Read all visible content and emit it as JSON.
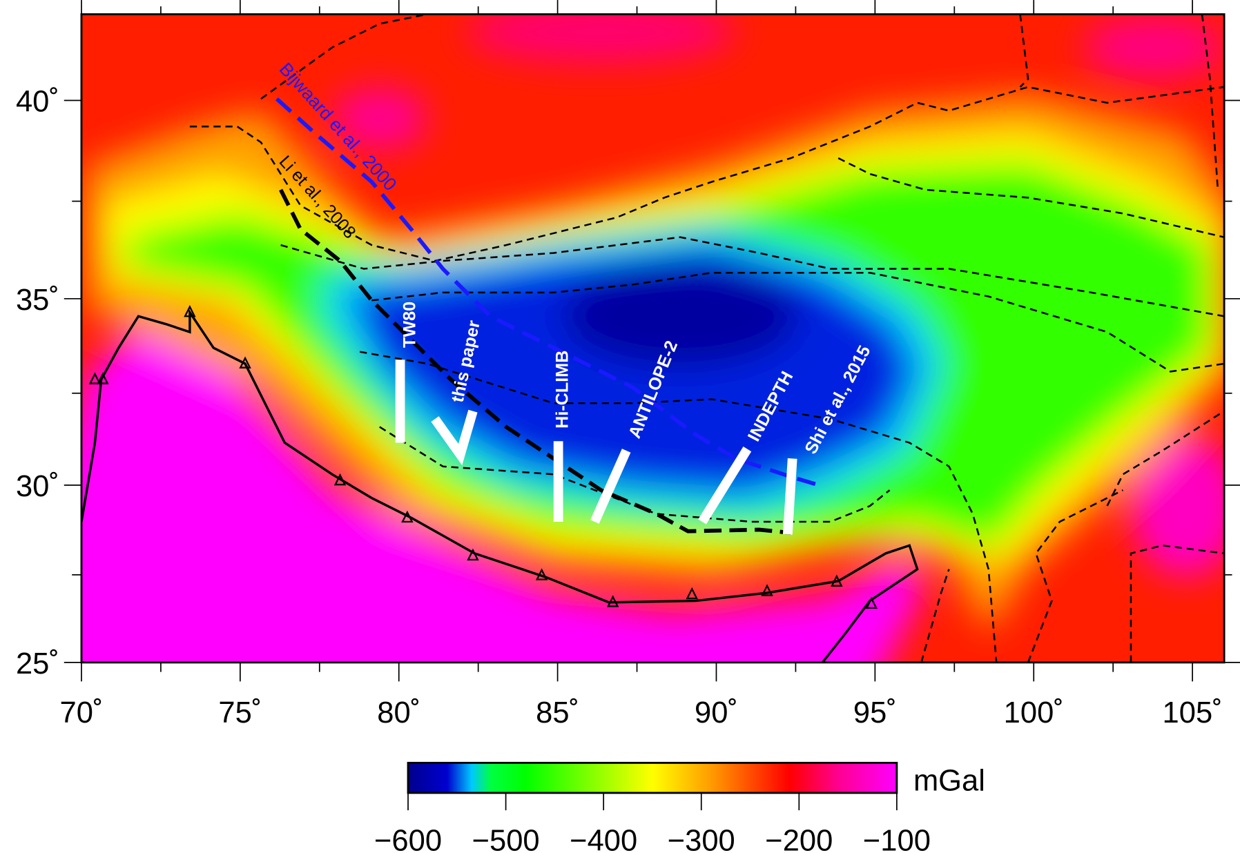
{
  "map": {
    "lon_range": [
      70,
      106
    ],
    "lat_range": [
      25,
      42.1
    ],
    "projection": "mercator",
    "lon_ticks": [
      70,
      75,
      80,
      85,
      90,
      95,
      100,
      105
    ],
    "lon_tick_labels": [
      "70˚",
      "75˚",
      "80˚",
      "85˚",
      "90˚",
      "95˚",
      "100˚",
      "105˚"
    ],
    "lat_ticks": [
      25,
      30,
      35,
      40
    ],
    "lat_tick_labels": [
      "25˚",
      "30˚",
      "35˚",
      "40˚"
    ],
    "annotations": {
      "bijwaard": "Bijwaard et al., 2000",
      "li": "Li et al., 2008"
    },
    "profiles": [
      {
        "label": "TW80"
      },
      {
        "label": "this  paper"
      },
      {
        "label": "Hi-CLIMB"
      },
      {
        "label": "ANTILOPE-2"
      },
      {
        "label": "INDEPTH"
      },
      {
        "label": "Shi et al., 2015"
      }
    ],
    "colors": {
      "bijwaard_line": "#1a1aff",
      "li_line": "#000000",
      "profiles": "#ffffff",
      "front": "#000000"
    }
  },
  "colorbar": {
    "unit": "mGal",
    "range": [
      -600,
      -100
    ],
    "ticks": [
      -600,
      -500,
      -400,
      -300,
      -200,
      -100
    ],
    "tick_labels": [
      "−600",
      "−500",
      "−400",
      "−300",
      "−200",
      "−100"
    ],
    "stops": [
      {
        "value": -600,
        "color": "#00008c"
      },
      {
        "value": -560,
        "color": "#0000d0"
      },
      {
        "value": -535,
        "color": "#00c8ff"
      },
      {
        "value": -515,
        "color": "#00ff40"
      },
      {
        "value": -480,
        "color": "#00ff00"
      },
      {
        "value": -400,
        "color": "#9cff00"
      },
      {
        "value": -350,
        "color": "#ffff00"
      },
      {
        "value": -290,
        "color": "#ff9c00"
      },
      {
        "value": -210,
        "color": "#ff0000"
      },
      {
        "value": -160,
        "color": "#ff0090"
      },
      {
        "value": -100,
        "color": "#ff00ff"
      }
    ]
  }
}
